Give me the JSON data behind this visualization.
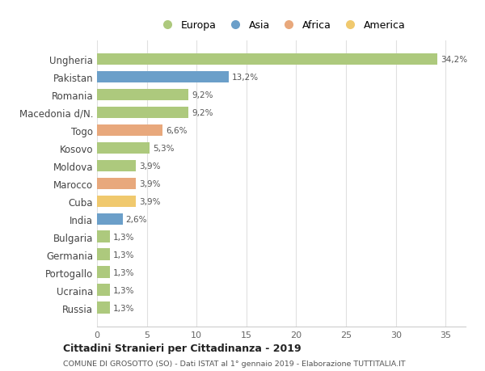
{
  "categories": [
    "Ungheria",
    "Pakistan",
    "Romania",
    "Macedonia d/N.",
    "Togo",
    "Kosovo",
    "Moldova",
    "Marocco",
    "Cuba",
    "India",
    "Bulgaria",
    "Germania",
    "Portogallo",
    "Ucraina",
    "Russia"
  ],
  "values": [
    34.2,
    13.2,
    9.2,
    9.2,
    6.6,
    5.3,
    3.9,
    3.9,
    3.9,
    2.6,
    1.3,
    1.3,
    1.3,
    1.3,
    1.3
  ],
  "labels": [
    "34,2%",
    "13,2%",
    "9,2%",
    "9,2%",
    "6,6%",
    "5,3%",
    "3,9%",
    "3,9%",
    "3,9%",
    "2,6%",
    "1,3%",
    "1,3%",
    "1,3%",
    "1,3%",
    "1,3%"
  ],
  "continents": [
    "Europa",
    "Asia",
    "Europa",
    "Europa",
    "Africa",
    "Europa",
    "Europa",
    "Africa",
    "America",
    "Asia",
    "Europa",
    "Europa",
    "Europa",
    "Europa",
    "Europa"
  ],
  "continent_colors": {
    "Europa": "#adc97d",
    "Asia": "#6b9fc9",
    "Africa": "#e8a87c",
    "America": "#f0c96e"
  },
  "legend_order": [
    "Europa",
    "Asia",
    "Africa",
    "America"
  ],
  "xlim": [
    0,
    37
  ],
  "xticks": [
    0,
    5,
    10,
    15,
    20,
    25,
    30,
    35
  ],
  "title_main": "Cittadini Stranieri per Cittadinanza - 2019",
  "title_sub": "COMUNE DI GROSOTTO (SO) - Dati ISTAT al 1° gennaio 2019 - Elaborazione TUTTITALIA.IT",
  "bg_color": "#ffffff",
  "grid_color": "#e0e0e0",
  "bar_height": 0.65
}
